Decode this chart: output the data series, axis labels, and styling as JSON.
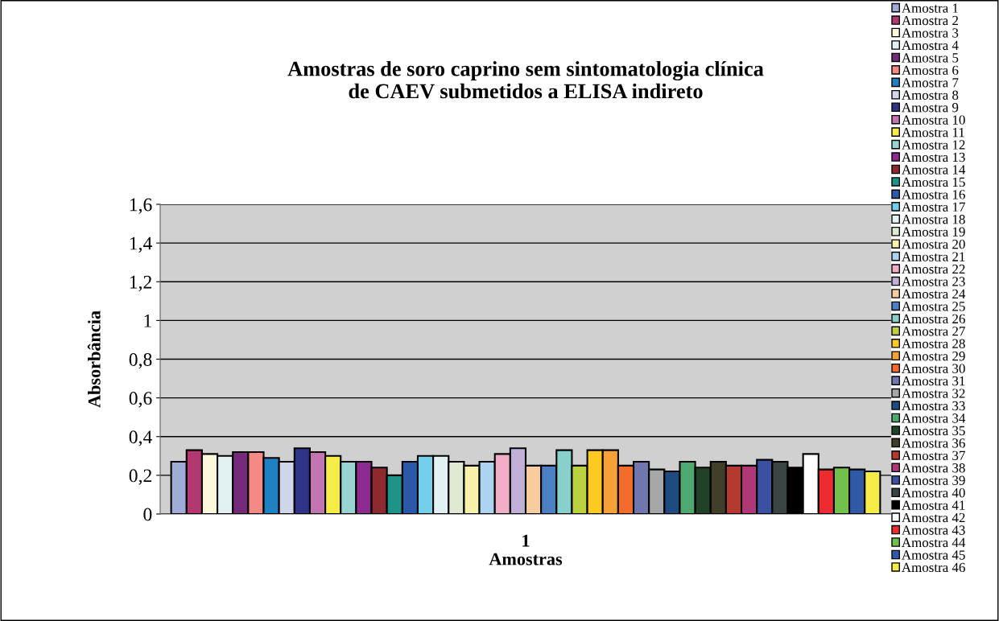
{
  "chart_data": {
    "type": "bar",
    "title": "Amostras de soro caprino sem sintomatologia clínica\nde CAEV submetidos a ELISA indireto",
    "xlabel": "Amostras",
    "ylabel": "Absorbância",
    "categories": [
      "1"
    ],
    "ylim": [
      0,
      1.6
    ],
    "yticks": [
      {
        "value": 0,
        "label": "0"
      },
      {
        "value": 0.2,
        "label": "0,2"
      },
      {
        "value": 0.4,
        "label": "0,4"
      },
      {
        "value": 0.6,
        "label": "0,6"
      },
      {
        "value": 0.8,
        "label": "0,8"
      },
      {
        "value": 1,
        "label": "1"
      },
      {
        "value": 1.2,
        "label": "1,2"
      },
      {
        "value": 1.4,
        "label": "1,4"
      },
      {
        "value": 1.6,
        "label": "1,6"
      }
    ],
    "grid": "y",
    "legend": "right",
    "series": [
      {
        "name": "Amostra 1",
        "color": "#a0acd8",
        "values": [
          0.27
        ]
      },
      {
        "name": "Amostra 2",
        "color": "#b23870",
        "values": [
          0.33
        ]
      },
      {
        "name": "Amostra 3",
        "color": "#fcf8dc",
        "values": [
          0.31
        ]
      },
      {
        "name": "Amostra 4",
        "color": "#e2f2f2",
        "values": [
          0.3
        ]
      },
      {
        "name": "Amostra 5",
        "color": "#742c7a",
        "values": [
          0.32
        ]
      },
      {
        "name": "Amostra 6",
        "color": "#f48a84",
        "values": [
          0.32
        ]
      },
      {
        "name": "Amostra 7",
        "color": "#2080c4",
        "values": [
          0.29
        ]
      },
      {
        "name": "Amostra 8",
        "color": "#d0d6ea",
        "values": [
          0.27
        ]
      },
      {
        "name": "Amostra 9",
        "color": "#303488",
        "values": [
          0.34
        ]
      },
      {
        "name": "Amostra 10",
        "color": "#c474b0",
        "values": [
          0.32
        ]
      },
      {
        "name": "Amostra 11",
        "color": "#f6ec48",
        "values": [
          0.3
        ]
      },
      {
        "name": "Amostra 12",
        "color": "#98d4d4",
        "values": [
          0.27
        ]
      },
      {
        "name": "Amostra 13",
        "color": "#8c2c90",
        "values": [
          0.27
        ]
      },
      {
        "name": "Amostra 14",
        "color": "#8c2a30",
        "values": [
          0.24
        ]
      },
      {
        "name": "Amostra 15",
        "color": "#1e9488",
        "values": [
          0.2
        ]
      },
      {
        "name": "Amostra 16",
        "color": "#2c58a8",
        "values": [
          0.27
        ]
      },
      {
        "name": "Amostra 17",
        "color": "#74d0ea",
        "values": [
          0.3
        ]
      },
      {
        "name": "Amostra 18",
        "color": "#e2f2f2",
        "values": [
          0.3
        ]
      },
      {
        "name": "Amostra 19",
        "color": "#e0ead2",
        "values": [
          0.27
        ]
      },
      {
        "name": "Amostra 20",
        "color": "#f8f0a8",
        "values": [
          0.25
        ]
      },
      {
        "name": "Amostra 21",
        "color": "#acd4f0",
        "values": [
          0.27
        ]
      },
      {
        "name": "Amostra 22",
        "color": "#f0aec8",
        "values": [
          0.31
        ]
      },
      {
        "name": "Amostra 23",
        "color": "#c0b0d8",
        "values": [
          0.34
        ]
      },
      {
        "name": "Amostra 24",
        "color": "#f8cc9c",
        "values": [
          0.25
        ]
      },
      {
        "name": "Amostra 25",
        "color": "#4a80c4",
        "values": [
          0.25
        ]
      },
      {
        "name": "Amostra 26",
        "color": "#88d0cc",
        "values": [
          0.33
        ]
      },
      {
        "name": "Amostra 27",
        "color": "#bcd040",
        "values": [
          0.25
        ]
      },
      {
        "name": "Amostra 28",
        "color": "#fcca20",
        "values": [
          0.33
        ]
      },
      {
        "name": "Amostra 29",
        "color": "#f6a038",
        "values": [
          0.33
        ]
      },
      {
        "name": "Amostra 30",
        "color": "#f26c2c",
        "values": [
          0.25
        ]
      },
      {
        "name": "Amostra 31",
        "color": "#7076ae",
        "values": [
          0.27
        ]
      },
      {
        "name": "Amostra 32",
        "color": "#a6a8a8",
        "values": [
          0.23
        ]
      },
      {
        "name": "Amostra 33",
        "color": "#1e4c80",
        "values": [
          0.22
        ]
      },
      {
        "name": "Amostra 34",
        "color": "#4ea870",
        "values": [
          0.27
        ]
      },
      {
        "name": "Amostra 35",
        "color": "#224228",
        "values": [
          0.24
        ]
      },
      {
        "name": "Amostra 36",
        "color": "#403e28",
        "values": [
          0.27
        ]
      },
      {
        "name": "Amostra 37",
        "color": "#b43a30",
        "values": [
          0.25
        ]
      },
      {
        "name": "Amostra 38",
        "color": "#b03878",
        "values": [
          0.25
        ]
      },
      {
        "name": "Amostra 39",
        "color": "#3a50a0",
        "values": [
          0.28
        ]
      },
      {
        "name": "Amostra 40",
        "color": "#3a4444",
        "values": [
          0.27
        ]
      },
      {
        "name": "Amostra 41",
        "color": "#000000",
        "values": [
          0.24
        ]
      },
      {
        "name": "Amostra 42",
        "color": "#ffffff",
        "values": [
          0.31
        ]
      },
      {
        "name": "Amostra 43",
        "color": "#ec2c30",
        "values": [
          0.23
        ]
      },
      {
        "name": "Amostra 44",
        "color": "#74c04c",
        "values": [
          0.24
        ]
      },
      {
        "name": "Amostra 45",
        "color": "#2e5aa8",
        "values": [
          0.23
        ]
      },
      {
        "name": "Amostra 46",
        "color": "#f6ec48",
        "values": [
          0.22
        ]
      }
    ]
  }
}
